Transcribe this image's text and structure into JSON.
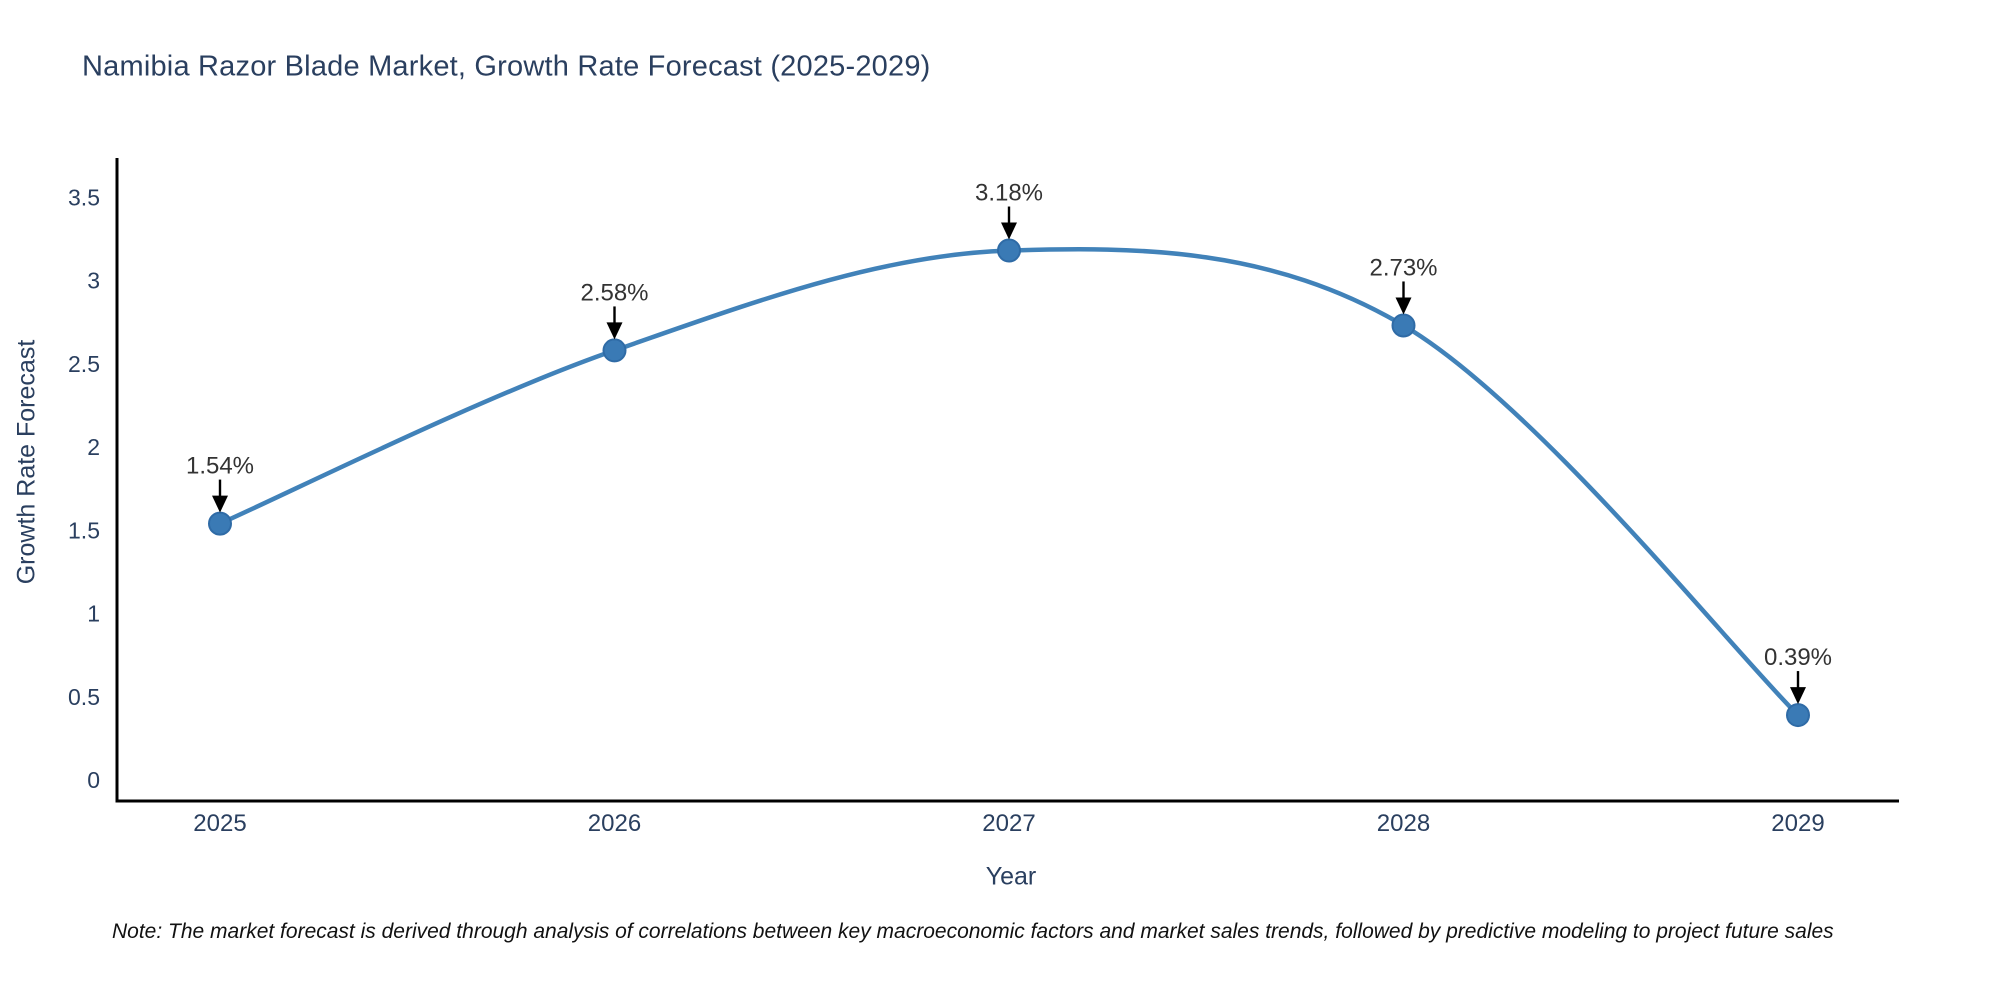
{
  "title": "Namibia Razor Blade Market, Growth Rate Forecast (2025-2029)",
  "note": "Note: The market forecast is derived through analysis of correlations between key macroeconomic factors and market sales trends, followed by predictive modeling to project future sales",
  "chart_data": {
    "type": "line",
    "line_shape": "spline",
    "title": "Namibia Razor Blade Market, Growth Rate Forecast (2025-2029)",
    "xlabel": "Year",
    "ylabel": "Growth Rate Forecast",
    "x": [
      2025,
      2026,
      2027,
      2028,
      2029
    ],
    "series": [
      {
        "name": "Growth Rate Forecast",
        "values": [
          1.54,
          2.58,
          3.18,
          2.73,
          0.39
        ]
      }
    ],
    "point_labels": [
      "1.54%",
      "2.58%",
      "3.18%",
      "2.73%",
      "0.39%"
    ],
    "xticks": [
      "2025",
      "2026",
      "2027",
      "2028",
      "2029"
    ],
    "yticks": [
      "0",
      "0.5",
      "1",
      "1.5",
      "2",
      "2.5",
      "3",
      "3.5"
    ],
    "xlim": [
      2024.74,
      2029.26
    ],
    "ylim": [
      -0.13,
      3.74
    ],
    "grid": false,
    "legend": "none",
    "colors": {
      "line": "#4182b9",
      "marker_fill": "#3a7ab5",
      "marker_edge": "#2f6ba6",
      "axis_line": "#000000",
      "axis_text": "#2a3f5f",
      "annotation_text": "#333333",
      "arrow": "#000000",
      "background": "#ffffff"
    }
  }
}
